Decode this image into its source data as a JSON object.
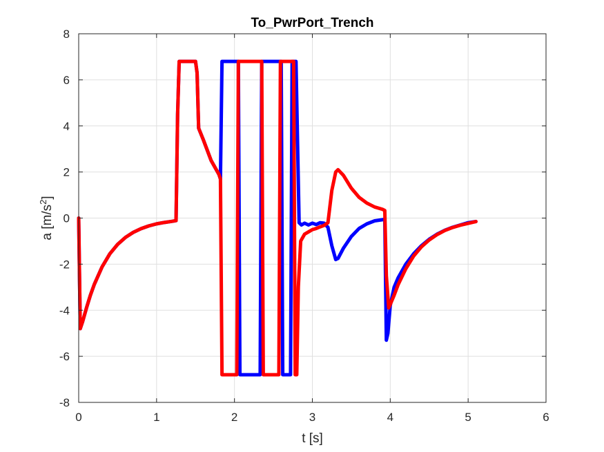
{
  "chart_data": {
    "type": "line",
    "title": "To_PwrPort_Trench",
    "xlabel": "t [s]",
    "ylabel_main": "a [m/s",
    "ylabel_sup": "2",
    "ylabel_end": "]",
    "xlim": [
      0,
      6
    ],
    "ylim": [
      -8,
      8
    ],
    "grid": true,
    "x_ticks": [
      0,
      1,
      2,
      3,
      4,
      5,
      6
    ],
    "y_ticks": [
      -8,
      -6,
      -4,
      -2,
      0,
      2,
      4,
      6,
      8
    ],
    "x_tick_labels": [
      "0",
      "1",
      "2",
      "3",
      "4",
      "5",
      "6"
    ],
    "y_tick_labels": [
      "-8",
      "-6",
      "-4",
      "-2",
      "0",
      "2",
      "4",
      "6",
      "8"
    ],
    "series": [
      {
        "color": "#0000ff",
        "points": [
          [
            0.0,
            0
          ],
          [
            0.02,
            -4.8
          ],
          [
            0.05,
            -4.5
          ],
          [
            0.1,
            -3.9
          ],
          [
            0.15,
            -3.35
          ],
          [
            0.2,
            -2.88
          ],
          [
            0.3,
            -2.12
          ],
          [
            0.4,
            -1.55
          ],
          [
            0.5,
            -1.14
          ],
          [
            0.6,
            -0.84
          ],
          [
            0.7,
            -0.62
          ],
          [
            0.8,
            -0.46
          ],
          [
            0.9,
            -0.34
          ],
          [
            1.0,
            -0.25
          ],
          [
            1.1,
            -0.19
          ],
          [
            1.2,
            -0.14
          ],
          [
            1.25,
            -0.11
          ],
          [
            1.27,
            4.5
          ],
          [
            1.29,
            6.8
          ],
          [
            1.5,
            6.8
          ],
          [
            1.52,
            6.3
          ],
          [
            1.54,
            3.9
          ],
          [
            1.6,
            3.4
          ],
          [
            1.7,
            2.5
          ],
          [
            1.8,
            1.9
          ],
          [
            1.82,
            1.7
          ],
          [
            1.84,
            6.8
          ],
          [
            2.0,
            6.8
          ],
          [
            2.05,
            6.8
          ],
          [
            2.07,
            -6.8
          ],
          [
            2.12,
            -6.8
          ],
          [
            2.1,
            -6.8
          ],
          [
            2.33,
            -6.8
          ],
          [
            2.35,
            6.8
          ],
          [
            2.55,
            6.8
          ],
          [
            2.6,
            6.8
          ],
          [
            2.62,
            -6.8
          ],
          [
            2.72,
            -6.8
          ],
          [
            2.74,
            6.8
          ],
          [
            2.79,
            6.8
          ],
          [
            2.83,
            -0.2
          ],
          [
            2.86,
            -0.3
          ],
          [
            2.9,
            -0.22
          ],
          [
            2.95,
            -0.3
          ],
          [
            3.0,
            -0.22
          ],
          [
            3.05,
            -0.28
          ],
          [
            3.1,
            -0.2
          ],
          [
            3.15,
            -0.22
          ],
          [
            3.2,
            -0.4
          ],
          [
            3.25,
            -1.2
          ],
          [
            3.3,
            -1.8
          ],
          [
            3.33,
            -1.75
          ],
          [
            3.4,
            -1.3
          ],
          [
            3.5,
            -0.8
          ],
          [
            3.6,
            -0.45
          ],
          [
            3.7,
            -0.25
          ],
          [
            3.8,
            -0.12
          ],
          [
            3.9,
            -0.07
          ],
          [
            3.93,
            -0.05
          ],
          [
            3.95,
            -5.3
          ],
          [
            3.97,
            -5.0
          ],
          [
            4.0,
            -3.8
          ],
          [
            4.05,
            -3.0
          ],
          [
            4.1,
            -2.6
          ],
          [
            4.2,
            -2.0
          ],
          [
            4.3,
            -1.55
          ],
          [
            4.4,
            -1.2
          ],
          [
            4.5,
            -0.92
          ],
          [
            4.6,
            -0.7
          ],
          [
            4.7,
            -0.53
          ],
          [
            4.8,
            -0.4
          ],
          [
            4.9,
            -0.3
          ],
          [
            5.0,
            -0.2
          ],
          [
            5.1,
            -0.15
          ]
        ]
      },
      {
        "color": "#ff0000",
        "points": [
          [
            0.0,
            0
          ],
          [
            0.02,
            -4.8
          ],
          [
            0.05,
            -4.5
          ],
          [
            0.1,
            -3.9
          ],
          [
            0.15,
            -3.35
          ],
          [
            0.2,
            -2.88
          ],
          [
            0.3,
            -2.12
          ],
          [
            0.4,
            -1.55
          ],
          [
            0.5,
            -1.14
          ],
          [
            0.6,
            -0.84
          ],
          [
            0.7,
            -0.62
          ],
          [
            0.8,
            -0.46
          ],
          [
            0.9,
            -0.34
          ],
          [
            1.0,
            -0.25
          ],
          [
            1.1,
            -0.19
          ],
          [
            1.2,
            -0.14
          ],
          [
            1.25,
            -0.11
          ],
          [
            1.27,
            4.5
          ],
          [
            1.29,
            6.8
          ],
          [
            1.5,
            6.8
          ],
          [
            1.52,
            6.3
          ],
          [
            1.54,
            3.9
          ],
          [
            1.6,
            3.4
          ],
          [
            1.7,
            2.5
          ],
          [
            1.8,
            1.9
          ],
          [
            1.82,
            1.7
          ],
          [
            1.84,
            -6.8
          ],
          [
            2.03,
            -6.8
          ],
          [
            2.05,
            6.8
          ],
          [
            2.35,
            6.8
          ],
          [
            2.37,
            -6.8
          ],
          [
            2.57,
            -6.8
          ],
          [
            2.59,
            6.8
          ],
          [
            2.76,
            6.8
          ],
          [
            2.78,
            -6.8
          ],
          [
            2.8,
            -6.8
          ],
          [
            2.82,
            -3.0
          ],
          [
            2.85,
            -1.0
          ],
          [
            2.9,
            -0.7
          ],
          [
            2.95,
            -0.6
          ],
          [
            3.0,
            -0.5
          ],
          [
            3.05,
            -0.45
          ],
          [
            3.1,
            -0.38
          ],
          [
            3.15,
            -0.32
          ],
          [
            3.2,
            -0.2
          ],
          [
            3.25,
            1.2
          ],
          [
            3.3,
            2.0
          ],
          [
            3.33,
            2.1
          ],
          [
            3.4,
            1.85
          ],
          [
            3.5,
            1.3
          ],
          [
            3.6,
            0.9
          ],
          [
            3.7,
            0.65
          ],
          [
            3.8,
            0.48
          ],
          [
            3.9,
            0.38
          ],
          [
            3.93,
            0.33
          ],
          [
            3.95,
            -2.5
          ],
          [
            3.98,
            -3.9
          ],
          [
            4.0,
            -3.75
          ],
          [
            4.05,
            -3.35
          ],
          [
            4.1,
            -2.9
          ],
          [
            4.2,
            -2.2
          ],
          [
            4.3,
            -1.65
          ],
          [
            4.4,
            -1.25
          ],
          [
            4.5,
            -0.95
          ],
          [
            4.6,
            -0.72
          ],
          [
            4.7,
            -0.54
          ],
          [
            4.8,
            -0.41
          ],
          [
            4.9,
            -0.31
          ],
          [
            5.0,
            -0.23
          ],
          [
            5.1,
            -0.15
          ]
        ]
      }
    ]
  }
}
